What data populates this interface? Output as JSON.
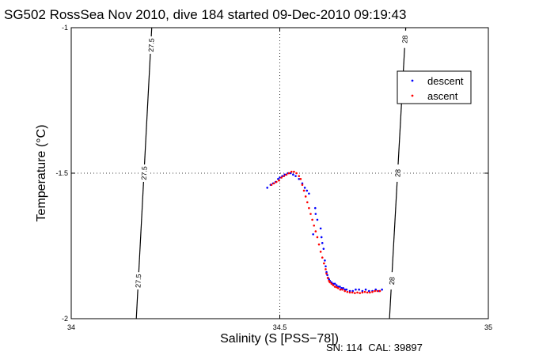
{
  "chart_data": {
    "type": "scatter",
    "title": "SG502 RossSea Nov 2010, dive 184 started 09-Dec-2010 09:19:43",
    "xlabel": "Salinity (S [PSS−78])",
    "ylabel": "Temperature (°C)",
    "xlim": [
      34,
      35
    ],
    "ylim": [
      -2,
      -1
    ],
    "x_ticks": [
      "34",
      "34.5",
      "35"
    ],
    "y_ticks": [
      "-1",
      "-1.5",
      "-2"
    ],
    "grid": "dotted at x=34.5 and y=-1.5",
    "legend_position": "top-right",
    "footer": "SN: 114  CAL: 39897",
    "isopycnals": [
      {
        "label": "27.5",
        "points": [
          [
            34.193,
            -1.0
          ],
          [
            34.156,
            -2.0
          ]
        ],
        "label_positions": [
          [
            34.192,
            -1.06
          ],
          [
            34.175,
            -1.5
          ],
          [
            34.161,
            -1.87
          ]
        ]
      },
      {
        "label": "28",
        "points": [
          [
            34.802,
            -1.0
          ],
          [
            34.763,
            -2.0
          ]
        ],
        "label_positions": [
          [
            34.8,
            -1.04
          ],
          [
            34.783,
            -1.5
          ],
          [
            34.769,
            -1.87
          ]
        ]
      }
    ],
    "series": [
      {
        "name": "descent",
        "color": "#0000ff",
        "x": [
          34.47,
          34.478,
          34.484,
          34.49,
          34.496,
          34.5,
          34.506,
          34.512,
          34.52,
          34.526,
          34.532,
          34.538,
          34.546,
          34.554,
          34.56,
          34.565,
          34.57,
          34.585,
          34.59,
          34.598,
          34.58,
          34.586,
          34.6,
          34.602,
          34.605,
          34.608,
          34.61,
          34.612,
          34.614,
          34.616,
          34.618,
          34.62,
          34.624,
          34.628,
          34.632,
          34.636,
          34.64,
          34.644,
          34.648,
          34.652,
          34.656,
          34.66,
          34.668,
          34.675,
          34.682,
          34.69,
          34.698,
          34.706,
          34.714,
          34.722,
          34.73,
          34.738,
          34.745
        ],
        "y": [
          -1.55,
          -1.54,
          -1.535,
          -1.53,
          -1.52,
          -1.515,
          -1.51,
          -1.505,
          -1.5,
          -1.5,
          -1.505,
          -1.51,
          -1.52,
          -1.535,
          -1.55,
          -1.56,
          -1.57,
          -1.62,
          -1.66,
          -1.69,
          -1.71,
          -1.64,
          -1.72,
          -1.74,
          -1.76,
          -1.8,
          -1.82,
          -1.84,
          -1.85,
          -1.86,
          -1.865,
          -1.87,
          -1.875,
          -1.88,
          -1.88,
          -1.885,
          -1.89,
          -1.89,
          -1.895,
          -1.895,
          -1.9,
          -1.9,
          -1.905,
          -1.905,
          -1.9,
          -1.9,
          -1.905,
          -1.9,
          -1.905,
          -1.905,
          -1.9,
          -1.905,
          -1.9
        ]
      },
      {
        "name": "ascent",
        "color": "#ff0000",
        "x": [
          34.48,
          34.486,
          34.492,
          34.498,
          34.504,
          34.51,
          34.516,
          34.522,
          34.528,
          34.534,
          34.54,
          34.546,
          34.55,
          34.554,
          34.558,
          34.562,
          34.566,
          34.57,
          34.574,
          34.578,
          34.582,
          34.586,
          34.59,
          34.594,
          34.598,
          34.602,
          34.606,
          34.61,
          34.612,
          34.615,
          34.618,
          34.62,
          34.624,
          34.628,
          34.632,
          34.636,
          34.64,
          34.645,
          34.65,
          34.656,
          34.662,
          34.668,
          34.674,
          34.68,
          34.686,
          34.692,
          34.698,
          34.704,
          34.71,
          34.716,
          34.722,
          34.728,
          34.734,
          34.74
        ],
        "y": [
          -1.54,
          -1.535,
          -1.53,
          -1.525,
          -1.515,
          -1.51,
          -1.505,
          -1.5,
          -1.495,
          -1.495,
          -1.5,
          -1.51,
          -1.52,
          -1.54,
          -1.56,
          -1.58,
          -1.6,
          -1.62,
          -1.64,
          -1.66,
          -1.68,
          -1.7,
          -1.72,
          -1.745,
          -1.77,
          -1.79,
          -1.81,
          -1.83,
          -1.845,
          -1.86,
          -1.87,
          -1.875,
          -1.88,
          -1.885,
          -1.89,
          -1.892,
          -1.895,
          -1.9,
          -1.9,
          -1.905,
          -1.908,
          -1.91,
          -1.91,
          -1.912,
          -1.91,
          -1.912,
          -1.91,
          -1.908,
          -1.91,
          -1.91,
          -1.908,
          -1.905,
          -1.905,
          -1.905
        ]
      }
    ]
  }
}
